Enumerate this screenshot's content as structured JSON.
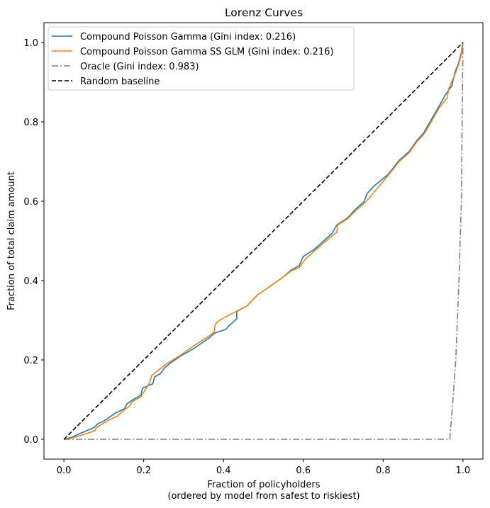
{
  "chart_data": {
    "type": "line",
    "title": "Lorenz Curves",
    "xlabel": "Fraction of policyholders\n(ordered by model from safest to riskiest)",
    "xlabel_lines": [
      "Fraction of policyholders",
      "(ordered by model from safest to riskiest)"
    ],
    "ylabel": "Fraction of total claim amount",
    "xlim": [
      -0.05,
      1.05
    ],
    "ylim": [
      -0.05,
      1.05
    ],
    "xticks": [
      0.0,
      0.2,
      0.4,
      0.6,
      0.8,
      1.0
    ],
    "xtick_labels": [
      "0.0",
      "0.2",
      "0.4",
      "0.6",
      "0.8",
      "1.0"
    ],
    "yticks": [
      0.0,
      0.2,
      0.4,
      0.6,
      0.8,
      1.0
    ],
    "ytick_labels": [
      "0.0",
      "0.2",
      "0.4",
      "0.6",
      "0.8",
      "1.0"
    ],
    "grid": false,
    "legend_position": "upper-left",
    "series": [
      {
        "name": "Compound Poisson Gamma (Gini index: 0.216)",
        "color": "#1f77b4",
        "style": "solid",
        "x": [
          0,
          0.02,
          0.037,
          0.076,
          0.085,
          0.103,
          0.129,
          0.152,
          0.158,
          0.17,
          0.193,
          0.197,
          0.223,
          0.227,
          0.241,
          0.254,
          0.268,
          0.291,
          0.326,
          0.362,
          0.379,
          0.406,
          0.413,
          0.424,
          0.433,
          0.433,
          0.459,
          0.484,
          0.507,
          0.528,
          0.546,
          0.569,
          0.59,
          0.599,
          0.628,
          0.672,
          0.684,
          0.711,
          0.729,
          0.752,
          0.761,
          0.778,
          0.812,
          0.84,
          0.865,
          0.883,
          0.902,
          0.91,
          0.941,
          0.956,
          0.972,
          0.98,
          0.989,
          0.996,
          1.0
        ],
        "y": [
          0,
          0.005,
          0.013,
          0.03,
          0.039,
          0.048,
          0.066,
          0.077,
          0.089,
          0.098,
          0.111,
          0.129,
          0.14,
          0.157,
          0.165,
          0.182,
          0.193,
          0.209,
          0.229,
          0.254,
          0.268,
          0.277,
          0.286,
          0.295,
          0.304,
          0.322,
          0.336,
          0.363,
          0.379,
          0.394,
          0.406,
          0.426,
          0.438,
          0.46,
          0.479,
          0.519,
          0.54,
          0.558,
          0.578,
          0.599,
          0.621,
          0.639,
          0.667,
          0.703,
          0.725,
          0.751,
          0.773,
          0.787,
          0.841,
          0.868,
          0.891,
          0.925,
          0.948,
          0.975,
          1.0
        ]
      },
      {
        "name": "Compound Poisson Gamma SS GLM (Gini index: 0.216)",
        "color": "#ff7f0e",
        "style": "solid",
        "x": [
          0,
          0.016,
          0.05,
          0.078,
          0.082,
          0.112,
          0.135,
          0.152,
          0.165,
          0.17,
          0.193,
          0.215,
          0.22,
          0.236,
          0.254,
          0.291,
          0.326,
          0.362,
          0.377,
          0.379,
          0.388,
          0.431,
          0.459,
          0.484,
          0.507,
          0.528,
          0.546,
          0.569,
          0.59,
          0.604,
          0.628,
          0.672,
          0.684,
          0.686,
          0.711,
          0.729,
          0.752,
          0.77,
          0.812,
          0.84,
          0.865,
          0.883,
          0.902,
          0.91,
          0.941,
          0.96,
          0.965,
          0.98,
          0.989,
          0.996,
          1.0
        ],
        "y": [
          0,
          0.002,
          0.012,
          0.022,
          0.03,
          0.048,
          0.059,
          0.075,
          0.084,
          0.094,
          0.107,
          0.143,
          0.161,
          0.173,
          0.188,
          0.211,
          0.236,
          0.259,
          0.271,
          0.289,
          0.299,
          0.322,
          0.336,
          0.363,
          0.379,
          0.394,
          0.406,
          0.424,
          0.433,
          0.453,
          0.475,
          0.513,
          0.522,
          0.54,
          0.556,
          0.574,
          0.594,
          0.614,
          0.664,
          0.7,
          0.722,
          0.748,
          0.769,
          0.782,
          0.836,
          0.86,
          0.885,
          0.92,
          0.944,
          0.97,
          1.0
        ]
      },
      {
        "name": "Oracle (Gini index: 0.983)",
        "color": "#808080",
        "style": "dashdot",
        "x": [
          0,
          0.967,
          0.975,
          0.982,
          0.99,
          0.996,
          1.0
        ],
        "y": [
          0,
          0,
          0.1,
          0.2,
          0.4,
          0.6,
          1.0
        ]
      },
      {
        "name": "Random baseline",
        "color": "#000000",
        "style": "dashed",
        "x": [
          0,
          1
        ],
        "y": [
          0,
          1
        ]
      }
    ]
  }
}
